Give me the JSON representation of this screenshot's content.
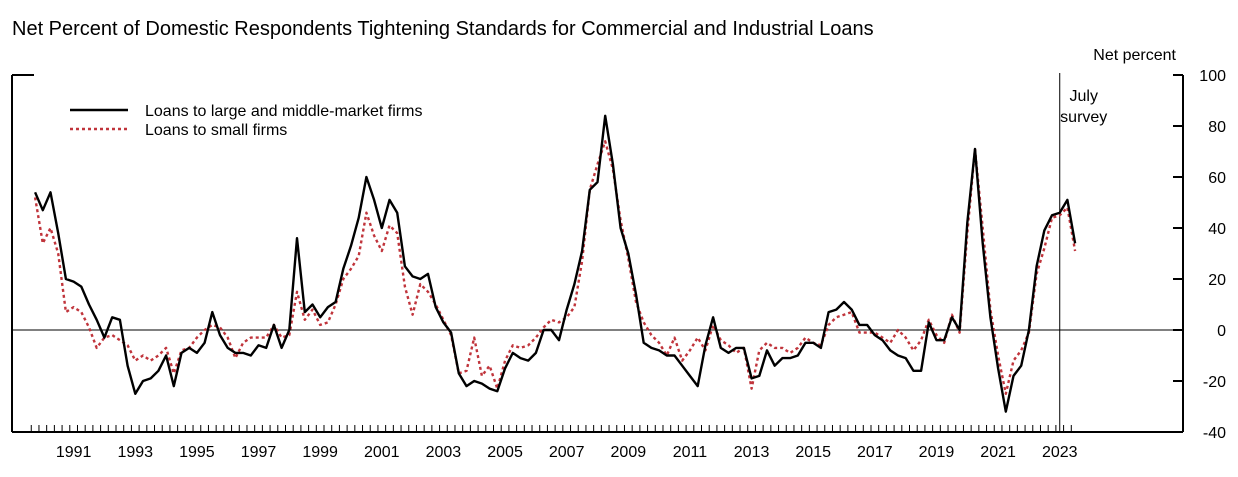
{
  "chart_data": {
    "type": "line",
    "title": "Net Percent of Domestic Respondents Tightening Standards for Commercial and Industrial Loans",
    "ylabel": "Net percent",
    "xlabel": "",
    "ylim": [
      -40,
      100
    ],
    "xlim": [
      1989.5,
      2027.5
    ],
    "yticks": [
      -40,
      -20,
      0,
      20,
      40,
      60,
      80,
      100
    ],
    "xtick_labels": [
      "1991",
      "1993",
      "1995",
      "1997",
      "1999",
      "2001",
      "2003",
      "2005",
      "2007",
      "2009",
      "2011",
      "2013",
      "2015",
      "2017",
      "2019",
      "2021",
      "2023"
    ],
    "annotation": {
      "lines": [
        "July",
        "survey"
      ],
      "x": 2023.5
    },
    "legend_position": "top-left",
    "series": [
      {
        "name": "Loans to large and middle-market firms",
        "color": "#000000",
        "style": "solid",
        "points": [
          [
            1990.25,
            54
          ],
          [
            1990.5,
            47
          ],
          [
            1990.75,
            54
          ],
          [
            1991.0,
            38
          ],
          [
            1991.25,
            20
          ],
          [
            1991.5,
            19
          ],
          [
            1991.75,
            17
          ],
          [
            1992.0,
            10
          ],
          [
            1992.25,
            4
          ],
          [
            1992.5,
            -3
          ],
          [
            1992.75,
            5
          ],
          [
            1993.0,
            4
          ],
          [
            1993.25,
            -14
          ],
          [
            1993.5,
            -25
          ],
          [
            1993.75,
            -20
          ],
          [
            1994.0,
            -19
          ],
          [
            1994.25,
            -16
          ],
          [
            1994.5,
            -10
          ],
          [
            1994.75,
            -22
          ],
          [
            1995.0,
            -9
          ],
          [
            1995.25,
            -7
          ],
          [
            1995.5,
            -9
          ],
          [
            1995.75,
            -5
          ],
          [
            1996.0,
            7
          ],
          [
            1996.25,
            -2
          ],
          [
            1996.5,
            -7
          ],
          [
            1996.75,
            -9
          ],
          [
            1997.0,
            -9
          ],
          [
            1997.25,
            -10
          ],
          [
            1997.5,
            -6
          ],
          [
            1997.75,
            -7
          ],
          [
            1998.0,
            2
          ],
          [
            1998.25,
            -7
          ],
          [
            1998.5,
            0
          ],
          [
            1998.75,
            36
          ],
          [
            1999.0,
            7
          ],
          [
            1999.25,
            10
          ],
          [
            1999.5,
            5
          ],
          [
            1999.75,
            9
          ],
          [
            2000.0,
            11
          ],
          [
            2000.25,
            24
          ],
          [
            2000.5,
            33
          ],
          [
            2000.75,
            44
          ],
          [
            2001.0,
            60
          ],
          [
            2001.25,
            51
          ],
          [
            2001.5,
            40
          ],
          [
            2001.75,
            51
          ],
          [
            2002.0,
            46
          ],
          [
            2002.25,
            25
          ],
          [
            2002.5,
            21
          ],
          [
            2002.75,
            20
          ],
          [
            2003.0,
            22
          ],
          [
            2003.25,
            9
          ],
          [
            2003.5,
            3
          ],
          [
            2003.75,
            -1
          ],
          [
            2004.0,
            -17
          ],
          [
            2004.25,
            -22
          ],
          [
            2004.5,
            -20
          ],
          [
            2004.75,
            -21
          ],
          [
            2005.0,
            -23
          ],
          [
            2005.25,
            -24
          ],
          [
            2005.5,
            -15
          ],
          [
            2005.75,
            -9
          ],
          [
            2006.0,
            -11
          ],
          [
            2006.25,
            -12
          ],
          [
            2006.5,
            -9
          ],
          [
            2006.75,
            0
          ],
          [
            2007.0,
            0
          ],
          [
            2007.25,
            -4
          ],
          [
            2007.5,
            8
          ],
          [
            2007.75,
            18
          ],
          [
            2008.0,
            31
          ],
          [
            2008.25,
            55
          ],
          [
            2008.5,
            58
          ],
          [
            2008.75,
            84
          ],
          [
            2009.0,
            65
          ],
          [
            2009.25,
            40
          ],
          [
            2009.5,
            30
          ],
          [
            2009.75,
            14
          ],
          [
            2010.0,
            -5
          ],
          [
            2010.25,
            -7
          ],
          [
            2010.5,
            -8
          ],
          [
            2010.75,
            -10
          ],
          [
            2011.0,
            -10
          ],
          [
            2011.25,
            -14
          ],
          [
            2011.5,
            -18
          ],
          [
            2011.75,
            -22
          ],
          [
            2012.0,
            -6
          ],
          [
            2012.25,
            5
          ],
          [
            2012.5,
            -7
          ],
          [
            2012.75,
            -9
          ],
          [
            2013.0,
            -7
          ],
          [
            2013.25,
            -7
          ],
          [
            2013.5,
            -19
          ],
          [
            2013.75,
            -18
          ],
          [
            2014.0,
            -8
          ],
          [
            2014.25,
            -14
          ],
          [
            2014.5,
            -11
          ],
          [
            2014.75,
            -11
          ],
          [
            2015.0,
            -10
          ],
          [
            2015.25,
            -5
          ],
          [
            2015.5,
            -5
          ],
          [
            2015.75,
            -7
          ],
          [
            2016.0,
            7
          ],
          [
            2016.25,
            8
          ],
          [
            2016.5,
            11
          ],
          [
            2016.75,
            8
          ],
          [
            2017.0,
            2
          ],
          [
            2017.25,
            2
          ],
          [
            2017.5,
            -2
          ],
          [
            2017.75,
            -4
          ],
          [
            2018.0,
            -8
          ],
          [
            2018.25,
            -10
          ],
          [
            2018.5,
            -11
          ],
          [
            2018.75,
            -16
          ],
          [
            2019.0,
            -16
          ],
          [
            2019.25,
            3
          ],
          [
            2019.5,
            -4
          ],
          [
            2019.75,
            -4
          ],
          [
            2020.0,
            5
          ],
          [
            2020.25,
            0
          ],
          [
            2020.5,
            42
          ],
          [
            2020.75,
            71
          ],
          [
            2021.0,
            34
          ],
          [
            2021.25,
            5
          ],
          [
            2021.5,
            -15
          ],
          [
            2021.75,
            -32
          ],
          [
            2022.0,
            -18
          ],
          [
            2022.25,
            -14
          ],
          [
            2022.5,
            0
          ],
          [
            2022.75,
            25
          ],
          [
            2023.0,
            39
          ],
          [
            2023.25,
            45
          ],
          [
            2023.5,
            46
          ],
          [
            2023.75,
            51
          ],
          [
            2024.0,
            34
          ]
        ]
      },
      {
        "name": "Loans to small firms",
        "color": "#c0343b",
        "style": "dashed",
        "points": [
          [
            1990.25,
            52
          ],
          [
            1990.5,
            34
          ],
          [
            1990.75,
            40
          ],
          [
            1991.0,
            30
          ],
          [
            1991.25,
            7
          ],
          [
            1991.5,
            9
          ],
          [
            1991.75,
            7
          ],
          [
            1992.0,
            1
          ],
          [
            1992.25,
            -7
          ],
          [
            1992.5,
            -3
          ],
          [
            1992.75,
            -2
          ],
          [
            1993.0,
            -4
          ],
          [
            1993.25,
            -6
          ],
          [
            1993.5,
            -12
          ],
          [
            1993.75,
            -10
          ],
          [
            1994.0,
            -12
          ],
          [
            1994.25,
            -10
          ],
          [
            1994.5,
            -7
          ],
          [
            1994.75,
            -17
          ],
          [
            1995.0,
            -8
          ],
          [
            1995.25,
            -7
          ],
          [
            1995.5,
            -3
          ],
          [
            1995.75,
            0
          ],
          [
            1996.0,
            2
          ],
          [
            1996.25,
            1
          ],
          [
            1996.5,
            -3
          ],
          [
            1996.75,
            -11
          ],
          [
            1997.0,
            -5
          ],
          [
            1997.25,
            -3
          ],
          [
            1997.5,
            -3
          ],
          [
            1997.75,
            -3
          ],
          [
            1998.0,
            2
          ],
          [
            1998.25,
            -3
          ],
          [
            1998.5,
            -2
          ],
          [
            1998.75,
            15
          ],
          [
            1999.0,
            4
          ],
          [
            1999.25,
            8
          ],
          [
            1999.5,
            2
          ],
          [
            1999.75,
            3
          ],
          [
            2000.0,
            10
          ],
          [
            2000.25,
            20
          ],
          [
            2000.5,
            24
          ],
          [
            2000.75,
            29
          ],
          [
            2001.0,
            46
          ],
          [
            2001.25,
            37
          ],
          [
            2001.5,
            31
          ],
          [
            2001.75,
            41
          ],
          [
            2002.0,
            38
          ],
          [
            2002.25,
            17
          ],
          [
            2002.5,
            6
          ],
          [
            2002.75,
            18
          ],
          [
            2003.0,
            15
          ],
          [
            2003.25,
            10
          ],
          [
            2003.5,
            4
          ],
          [
            2003.75,
            -2
          ],
          [
            2004.0,
            -17
          ],
          [
            2004.25,
            -16
          ],
          [
            2004.5,
            -3
          ],
          [
            2004.75,
            -18
          ],
          [
            2005.0,
            -14
          ],
          [
            2005.25,
            -23
          ],
          [
            2005.5,
            -12
          ],
          [
            2005.75,
            -6
          ],
          [
            2006.0,
            -7
          ],
          [
            2006.25,
            -6
          ],
          [
            2006.5,
            -3
          ],
          [
            2006.75,
            1
          ],
          [
            2007.0,
            4
          ],
          [
            2007.25,
            3
          ],
          [
            2007.5,
            5
          ],
          [
            2007.75,
            9
          ],
          [
            2008.0,
            27
          ],
          [
            2008.25,
            55
          ],
          [
            2008.5,
            65
          ],
          [
            2008.75,
            74
          ],
          [
            2009.0,
            63
          ],
          [
            2009.25,
            43
          ],
          [
            2009.5,
            28
          ],
          [
            2009.75,
            11
          ],
          [
            2010.0,
            3
          ],
          [
            2010.25,
            -2
          ],
          [
            2010.5,
            -5
          ],
          [
            2010.75,
            -10
          ],
          [
            2011.0,
            -3
          ],
          [
            2011.25,
            -12
          ],
          [
            2011.5,
            -8
          ],
          [
            2011.75,
            -3
          ],
          [
            2012.0,
            -8
          ],
          [
            2012.25,
            2
          ],
          [
            2012.5,
            -4
          ],
          [
            2012.75,
            -6
          ],
          [
            2013.0,
            -9
          ],
          [
            2013.25,
            -7
          ],
          [
            2013.5,
            -23
          ],
          [
            2013.75,
            -8
          ],
          [
            2014.0,
            -5
          ],
          [
            2014.25,
            -7
          ],
          [
            2014.5,
            -7
          ],
          [
            2014.75,
            -9
          ],
          [
            2015.0,
            -7
          ],
          [
            2015.25,
            -3
          ],
          [
            2015.5,
            -5
          ],
          [
            2015.75,
            -6
          ],
          [
            2016.0,
            2
          ],
          [
            2016.25,
            5
          ],
          [
            2016.5,
            6
          ],
          [
            2016.75,
            7
          ],
          [
            2017.0,
            -1
          ],
          [
            2017.25,
            -1
          ],
          [
            2017.5,
            -1
          ],
          [
            2017.75,
            -3
          ],
          [
            2018.0,
            -5
          ],
          [
            2018.25,
            0
          ],
          [
            2018.5,
            -3
          ],
          [
            2018.75,
            -8
          ],
          [
            2019.0,
            -4
          ],
          [
            2019.25,
            4
          ],
          [
            2019.5,
            -2
          ],
          [
            2019.75,
            -5
          ],
          [
            2020.0,
            6
          ],
          [
            2020.25,
            -1
          ],
          [
            2020.5,
            38
          ],
          [
            2020.75,
            71
          ],
          [
            2021.0,
            40
          ],
          [
            2021.25,
            8
          ],
          [
            2021.5,
            -10
          ],
          [
            2021.75,
            -25
          ],
          [
            2022.0,
            -12
          ],
          [
            2022.25,
            -8
          ],
          [
            2022.5,
            -1
          ],
          [
            2022.75,
            22
          ],
          [
            2023.0,
            32
          ],
          [
            2023.25,
            44
          ],
          [
            2023.5,
            45
          ],
          [
            2023.75,
            48
          ],
          [
            2024.0,
            31
          ]
        ]
      }
    ]
  }
}
